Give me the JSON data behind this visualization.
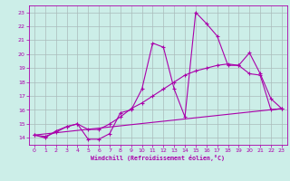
{
  "xlabel": "Windchill (Refroidissement éolien,°C)",
  "xlim": [
    -0.5,
    23.5
  ],
  "ylim": [
    13.5,
    23.5
  ],
  "xticks": [
    0,
    1,
    2,
    3,
    4,
    5,
    6,
    7,
    8,
    9,
    10,
    11,
    12,
    13,
    14,
    15,
    16,
    17,
    18,
    19,
    20,
    21,
    22,
    23
  ],
  "yticks": [
    14,
    15,
    16,
    17,
    18,
    19,
    20,
    21,
    22,
    23
  ],
  "background_color": "#cceee8",
  "grid_color": "#aabbbb",
  "line_color": "#aa00aa",
  "line1_x": [
    0,
    1,
    2,
    3,
    4,
    5,
    6,
    7,
    8,
    9,
    10,
    11,
    12,
    13,
    14,
    15,
    16,
    17,
    18,
    19,
    20,
    21,
    22,
    23
  ],
  "line1_y": [
    14.2,
    14.0,
    14.5,
    14.8,
    15.0,
    13.9,
    13.9,
    14.3,
    15.8,
    16.0,
    17.5,
    20.8,
    20.5,
    17.5,
    15.5,
    23.0,
    22.2,
    21.3,
    19.2,
    19.2,
    20.1,
    18.6,
    16.8,
    16.1
  ],
  "line2_x": [
    0,
    1,
    2,
    3,
    4,
    5,
    6,
    7,
    8,
    9,
    10,
    11,
    12,
    13,
    14,
    15,
    16,
    17,
    18,
    19,
    20,
    21,
    22,
    23
  ],
  "line2_y": [
    14.2,
    14.1,
    14.4,
    14.8,
    15.0,
    14.6,
    14.6,
    15.0,
    15.5,
    16.1,
    16.5,
    17.0,
    17.5,
    18.0,
    18.5,
    18.8,
    19.0,
    19.2,
    19.3,
    19.2,
    18.6,
    18.5,
    16.0,
    16.1
  ],
  "line3_x": [
    0,
    23
  ],
  "line3_y": [
    14.2,
    16.1
  ]
}
